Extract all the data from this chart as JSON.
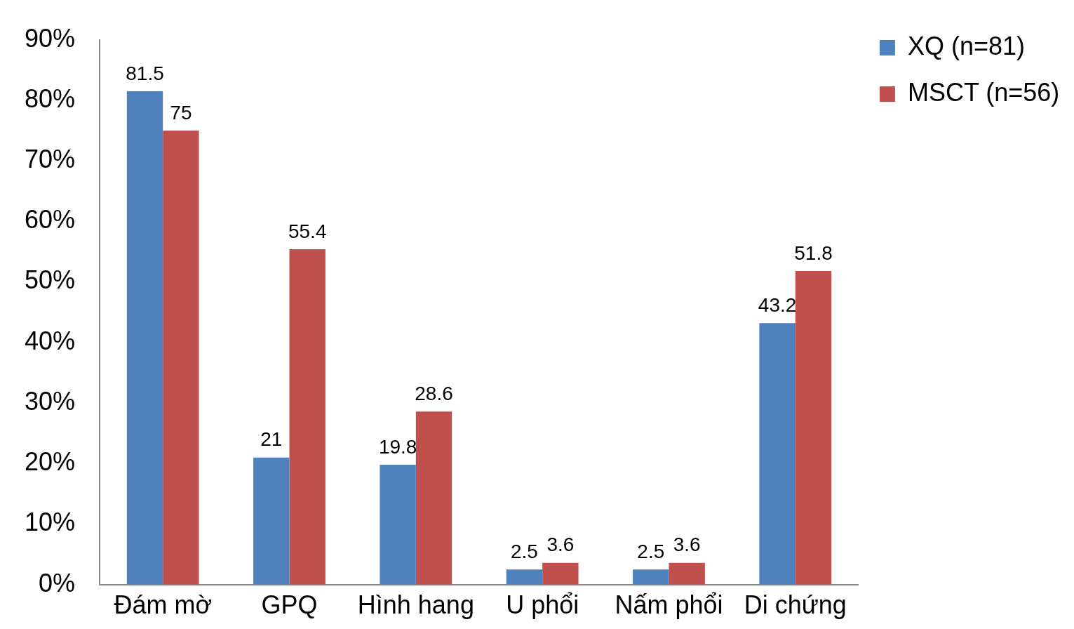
{
  "chart_data": {
    "type": "bar",
    "categories": [
      "Đám mờ",
      "GPQ",
      "Hình hang",
      "U phổi",
      "Nấm phổi",
      "Di chứng"
    ],
    "series": [
      {
        "name": "XQ (n=81)",
        "color": "#4f81bd",
        "values": [
          81.5,
          21,
          19.8,
          2.5,
          2.5,
          43.2
        ]
      },
      {
        "name": "MSCT (n=56)",
        "color": "#c0504d",
        "values": [
          75,
          55.4,
          28.6,
          3.6,
          3.6,
          51.8
        ]
      }
    ],
    "ylim": [
      0,
      90
    ],
    "yticks": [
      {
        "value": 0,
        "label": "0%"
      },
      {
        "value": 10,
        "label": "10%"
      },
      {
        "value": 20,
        "label": "20%"
      },
      {
        "value": 30,
        "label": "30%"
      },
      {
        "value": 40,
        "label": "40%"
      },
      {
        "value": 50,
        "label": "50%"
      },
      {
        "value": 60,
        "label": "60%"
      },
      {
        "value": 70,
        "label": "70%"
      },
      {
        "value": 80,
        "label": "80%"
      },
      {
        "value": 90,
        "label": "90%"
      }
    ],
    "data_labels": true,
    "grid": false,
    "legend": "top right"
  }
}
